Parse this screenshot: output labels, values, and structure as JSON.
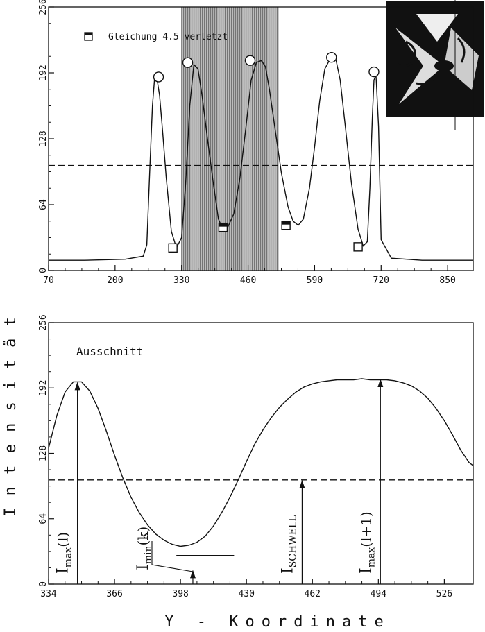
{
  "chart_data": [
    {
      "type": "line",
      "panel": "top",
      "xlim": [
        70,
        900
      ],
      "ylim": [
        0,
        256
      ],
      "xticks": [
        "70",
        "200",
        "330",
        "460",
        "590",
        "720",
        "850"
      ],
      "yticks": [
        "0",
        "64",
        "128",
        "192",
        "256"
      ],
      "threshold": 102,
      "shaded_region": [
        330,
        520
      ],
      "legend_label": "Gleichung 4.5 verletzt",
      "series": [
        {
          "x": [
            70,
            140,
            220,
            255,
            262,
            268,
            273,
            277,
            282,
            287,
            293,
            300,
            310,
            320,
            330,
            338,
            346,
            354,
            362,
            370,
            380,
            392,
            402,
            410,
            420,
            432,
            444,
            456,
            466,
            476,
            486,
            494,
            502,
            512,
            525,
            538,
            548,
            558,
            568,
            580,
            590,
            600,
            610,
            620,
            626,
            632,
            640,
            650,
            662,
            675,
            685,
            693,
            698,
            703,
            706,
            710,
            715,
            720,
            740,
            800,
            900
          ],
          "y": [
            10,
            10,
            11,
            14,
            25,
            100,
            160,
            185,
            186,
            170,
            135,
            90,
            38,
            22,
            32,
            85,
            160,
            200,
            196,
            170,
            130,
            85,
            50,
            41,
            42,
            55,
            90,
            140,
            185,
            202,
            204,
            198,
            175,
            140,
            95,
            62,
            48,
            44,
            50,
            80,
            120,
            165,
            196,
            205,
            206,
            204,
            185,
            140,
            85,
            40,
            24,
            28,
            80,
            150,
            185,
            190,
            140,
            30,
            12,
            10,
            10
          ]
        }
      ],
      "circle_markers": [
        [
          285,
          188
        ],
        [
          342,
          202
        ],
        [
          464,
          204
        ],
        [
          623,
          207
        ],
        [
          706,
          193
        ]
      ],
      "square_markers": [
        [
          313,
          22
        ],
        [
          411,
          42
        ],
        [
          534,
          44
        ],
        [
          675,
          23
        ]
      ]
    },
    {
      "type": "line",
      "panel": "bottom",
      "title": "Ausschnitt",
      "xlim": [
        334,
        540
      ],
      "ylim": [
        0,
        256
      ],
      "xticks": [
        "334",
        "366",
        "398",
        "430",
        "462",
        "494",
        "526"
      ],
      "yticks": [
        "0",
        "64",
        "128",
        "192",
        "256"
      ],
      "threshold": 102,
      "series": [
        {
          "x": [
            334,
            338,
            342,
            346,
            350,
            354,
            358,
            362,
            366,
            370,
            374,
            378,
            382,
            386,
            390,
            394,
            398,
            402,
            406,
            410,
            414,
            418,
            422,
            426,
            430,
            434,
            438,
            442,
            446,
            450,
            454,
            458,
            462,
            466,
            470,
            474,
            478,
            482,
            486,
            490,
            494,
            498,
            502,
            506,
            510,
            514,
            518,
            522,
            526,
            530,
            534,
            538,
            540
          ],
          "y": [
            133,
            165,
            188,
            198,
            198,
            189,
            172,
            150,
            126,
            104,
            85,
            70,
            58,
            49,
            43,
            39,
            37,
            38,
            41,
            47,
            57,
            70,
            85,
            102,
            120,
            137,
            151,
            163,
            173,
            181,
            188,
            193,
            196,
            198,
            199,
            200,
            200,
            200,
            201,
            200,
            200,
            200,
            199,
            197,
            194,
            189,
            182,
            172,
            160,
            146,
            131,
            119,
            116
          ]
        }
      ],
      "arrows": [
        {
          "x": 348,
          "y_top": 198,
          "label_main": "I",
          "label_sub": "max",
          "label_rest": "(l)"
        },
        {
          "x": 404,
          "y_top": 14,
          "label_main": "I",
          "label_sub": "min",
          "label_rest": "(k)"
        },
        {
          "x": 457,
          "y_top": 102,
          "label_main": "I",
          "label_sub": "SCHWELL",
          "label_rest": ""
        },
        {
          "x": 495,
          "y_top": 201,
          "label_main": "I",
          "label_sub": "max",
          "label_rest": "(l+1)"
        }
      ],
      "min_bar": {
        "x_from": 396,
        "x_to": 424,
        "y": 28
      }
    }
  ],
  "ylabel": "I n t e n s i t ä t",
  "xlabel": "Y - Koordinate"
}
